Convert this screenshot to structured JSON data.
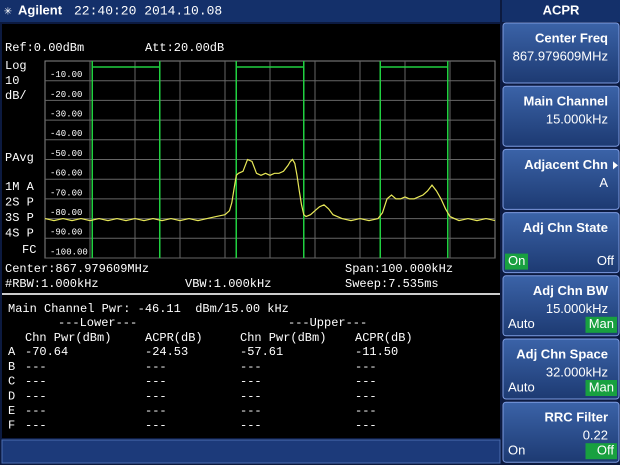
{
  "header": {
    "brand": "Agilent",
    "datetime": "22:40:20 2014.10.08",
    "mode": "ACPR"
  },
  "screen": {
    "ref": "Ref:0.00dBm",
    "att": "Att:20.00dB",
    "scale": [
      "Log",
      "10",
      "dB/"
    ],
    "detector": "PAvg",
    "traces": [
      {
        "label": "1M A",
        "color": "#f0f060"
      },
      {
        "label": "2S P",
        "color": "#40e0f0"
      },
      {
        "label": "3S P",
        "color": "#80f0f0"
      },
      {
        "label": "4S P",
        "color": "#e040f0"
      }
    ],
    "fc": "FC",
    "center": "Center:867.979609MHz",
    "span": "Span:100.000kHz",
    "rbw": "#RBW:1.000kHz",
    "vbw": "VBW:1.000kHz",
    "sweep": "Sweep:7.535ms"
  },
  "chart_data": {
    "type": "line",
    "color": "#e8e858",
    "grid": true,
    "ylim": [
      -100,
      0
    ],
    "yticks": [
      {
        "value": -10,
        "label": "-10.00"
      },
      {
        "value": -20,
        "label": "-20.00"
      },
      {
        "value": -30,
        "label": "-30.00"
      },
      {
        "value": -40,
        "label": "-40.00"
      },
      {
        "value": -50,
        "label": "-50.00"
      },
      {
        "value": -60,
        "label": "-60.00"
      },
      {
        "value": -70,
        "label": "-70.00"
      },
      {
        "value": -80,
        "label": "-80.00"
      },
      {
        "value": -90,
        "label": "-90.00"
      },
      {
        "value": -100,
        "label": "-100.00"
      }
    ],
    "xlim": [
      -50,
      50
    ],
    "xticks": [
      -40,
      -30,
      -20,
      -10,
      0,
      10,
      20,
      30,
      40
    ],
    "channel_markers": [
      -39.5,
      -24.5,
      -7.5,
      7.5,
      24.5,
      39.5
    ],
    "marker_color": "#20d040",
    "x": [
      -50,
      -48,
      -46,
      -44,
      -42,
      -40,
      -38,
      -36,
      -34,
      -32,
      -30,
      -28,
      -26,
      -24,
      -22,
      -20,
      -18,
      -16,
      -14,
      -12,
      -10,
      -9,
      -8.5,
      -8,
      -7.5,
      -7,
      -6,
      -5,
      -4,
      -3,
      -2,
      -1,
      0,
      1,
      2,
      3,
      4,
      4.5,
      5,
      5.5,
      6,
      6.5,
      7,
      7.5,
      8,
      9,
      10,
      11,
      12,
      13,
      14,
      16,
      18,
      20,
      22,
      24,
      25,
      26,
      27,
      28,
      29,
      30,
      31,
      32,
      33,
      34,
      35,
      36,
      37,
      38,
      39,
      40,
      42,
      44,
      46,
      48,
      50
    ],
    "values": [
      -80,
      -81,
      -80,
      -81,
      -80,
      -81,
      -80,
      -81,
      -80,
      -81,
      -80,
      -81,
      -80,
      -81,
      -80,
      -81,
      -80,
      -81,
      -80,
      -79,
      -78,
      -76,
      -72,
      -65,
      -58,
      -57,
      -56,
      -50,
      -51,
      -57,
      -58,
      -57,
      -58,
      -57,
      -57,
      -56,
      -53,
      -51,
      -50,
      -52,
      -58,
      -66,
      -73,
      -78,
      -79,
      -78,
      -76,
      -74,
      -73,
      -75,
      -78,
      -80,
      -81,
      -80,
      -81,
      -80,
      -77,
      -70,
      -68,
      -70,
      -70,
      -69,
      -70,
      -70,
      -69,
      -68,
      -66,
      -63,
      -66,
      -70,
      -75,
      -79,
      -81,
      -80,
      -81,
      -80,
      -81
    ]
  },
  "results": {
    "main": "Main Channel Pwr: -46.11  dBm/15.00 kHz",
    "lower": "---Lower---",
    "upper": "---Upper---",
    "headers": [
      "Chn Pwr(dBm)",
      "ACPR(dB)",
      "Chn Pwr(dBm)",
      "ACPR(dB)"
    ],
    "rows": [
      [
        "A",
        "-70.64",
        "-24.53",
        "-57.61",
        "-11.50"
      ],
      [
        "B",
        "---",
        "---",
        "---",
        "---"
      ],
      [
        "C",
        "---",
        "---",
        "---",
        "---"
      ],
      [
        "D",
        "---",
        "---",
        "---",
        "---"
      ],
      [
        "E",
        "---",
        "---",
        "---",
        "---"
      ],
      [
        "F",
        "---",
        "---",
        "---",
        "---"
      ]
    ]
  },
  "softkeys": [
    {
      "title": "Center Freq",
      "value": "867.979609MHz"
    },
    {
      "title": "Main Channel",
      "value": "15.000kHz"
    },
    {
      "title": "Adjacent Chn",
      "value": "A"
    },
    {
      "title": "Adj Chn State",
      "options": [
        "On",
        "Off"
      ],
      "selected": 0
    },
    {
      "title": "Adj Chn BW",
      "value": "15.000kHz",
      "options": [
        "Auto",
        "Man"
      ],
      "selected": 1
    },
    {
      "title": "Adj Chn Space",
      "value": "32.000kHz",
      "options": [
        "Auto",
        "Man"
      ],
      "selected": 1
    },
    {
      "title": "RRC Filter",
      "value": "0.22",
      "options": [
        "On",
        "Off"
      ],
      "selected": 1
    }
  ]
}
